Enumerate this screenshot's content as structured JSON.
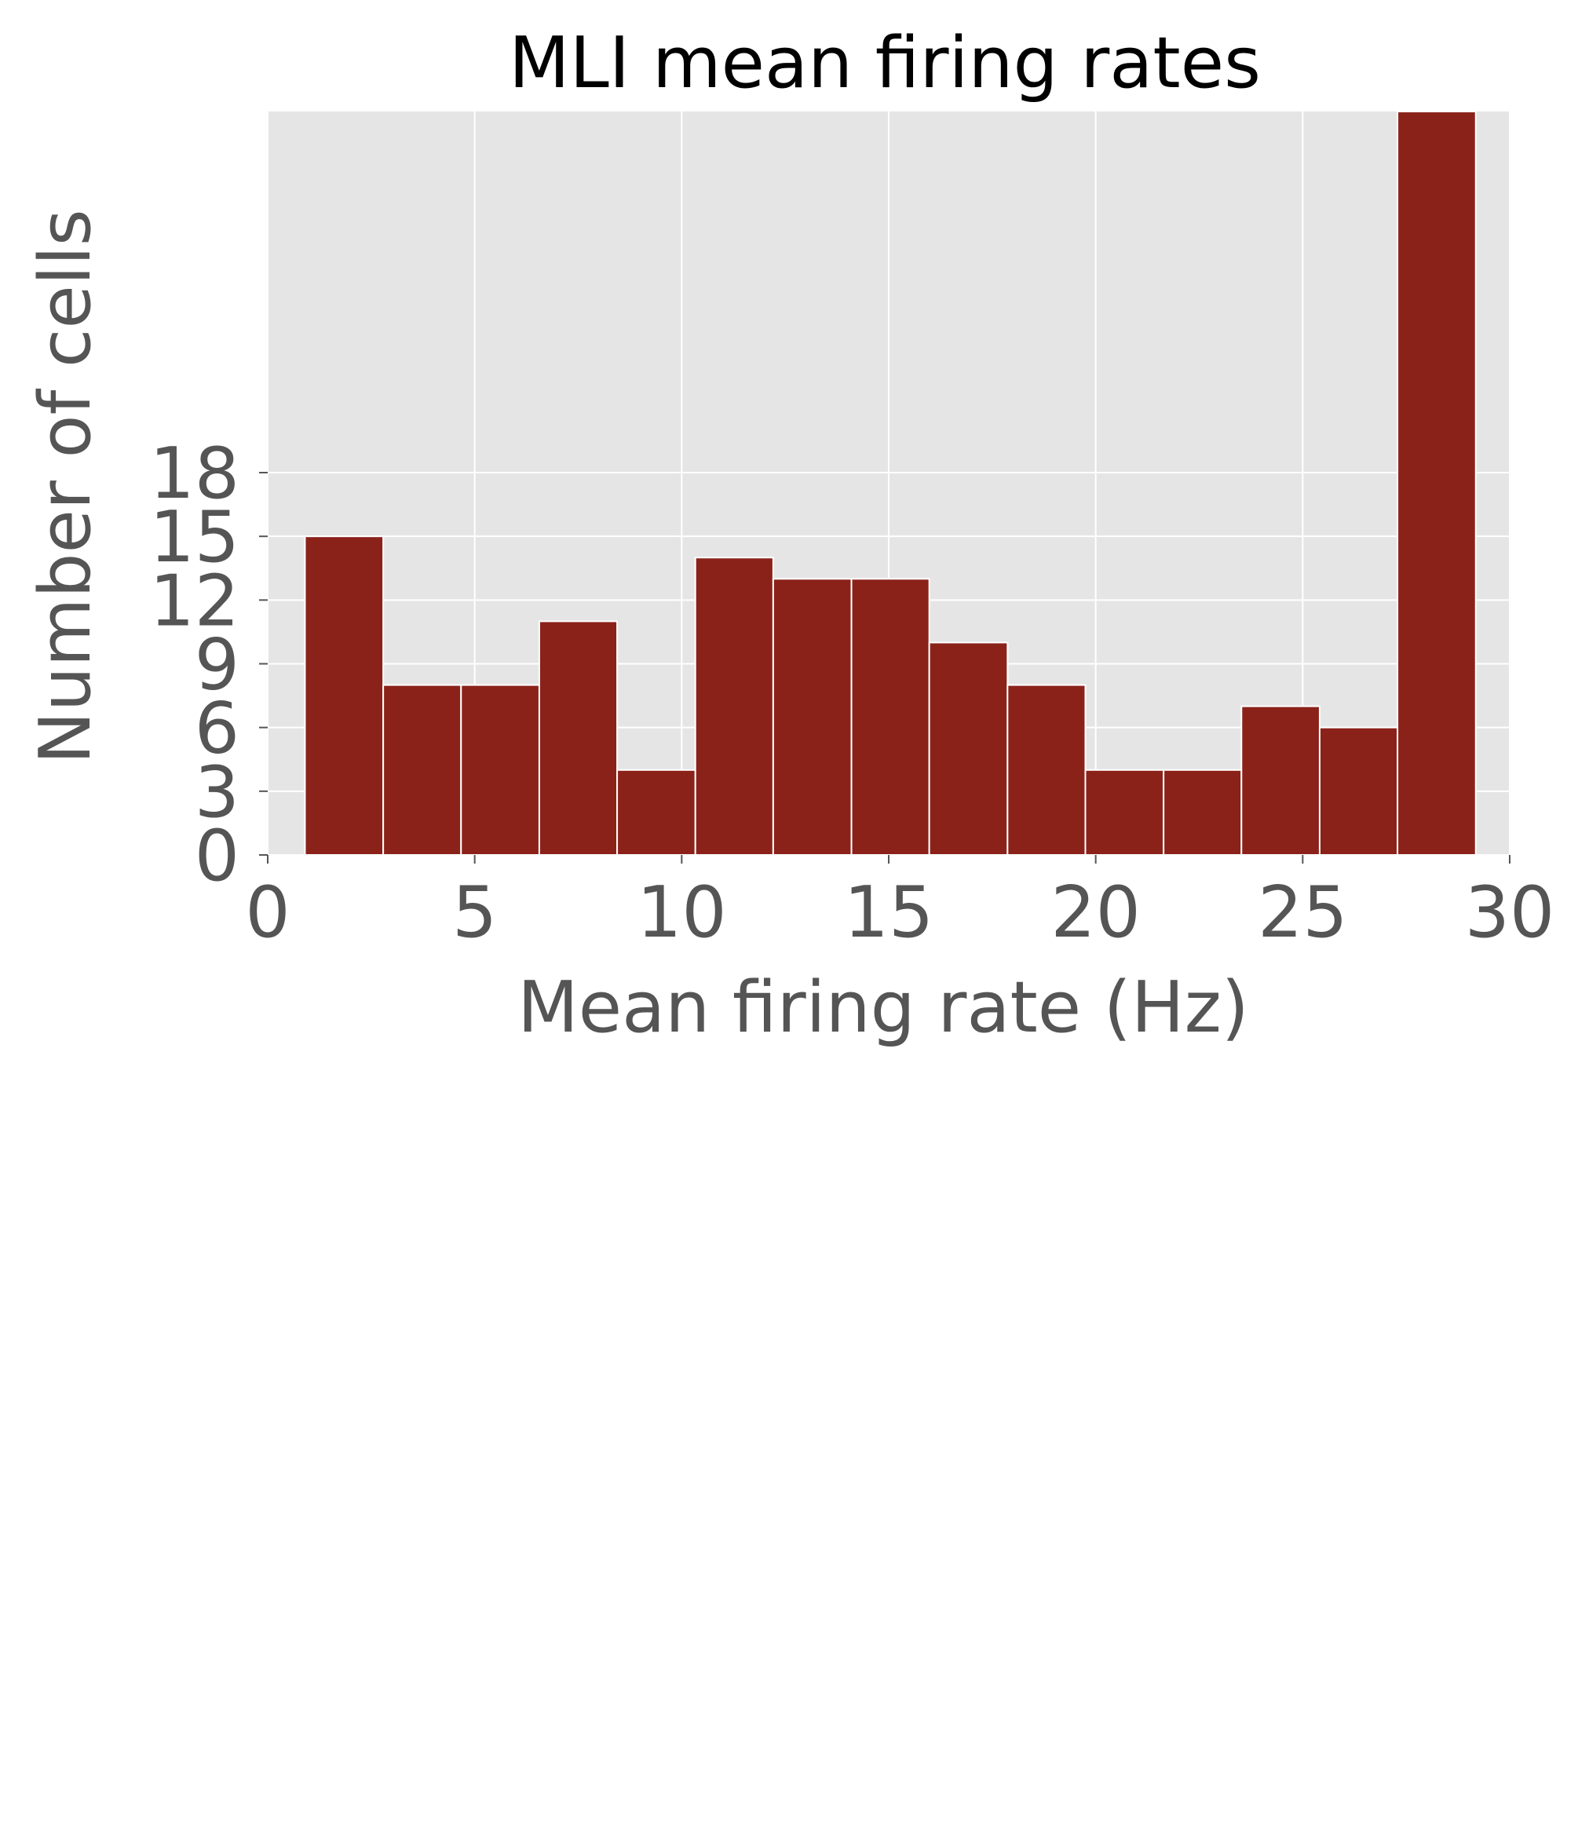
{
  "chart_data": {
    "type": "bar",
    "title": "MLI mean firing rates",
    "xlabel": "Mean firing rate (Hz)",
    "ylabel": "Number of cells",
    "xlim": [
      0,
      30
    ],
    "ylim": [
      0,
      35
    ],
    "xticks": [
      "0",
      "5",
      "10",
      "15",
      "20",
      "25",
      "30"
    ],
    "yticks": [
      "0",
      "3",
      "6",
      "9",
      "12",
      "15",
      "18"
    ],
    "bin_edges": [
      0.9,
      2.79,
      4.67,
      6.56,
      8.44,
      10.33,
      12.21,
      14.1,
      15.98,
      17.87,
      19.75,
      21.64,
      23.52,
      25.41,
      27.29,
      29.18
    ],
    "values": [
      15,
      8,
      8,
      11,
      4,
      14,
      13,
      13,
      10,
      8,
      4,
      4,
      7,
      6,
      35
    ],
    "grid": true,
    "legend": "none",
    "colors": {
      "bar_fill": "#8B221A",
      "bar_edge": "#ffffff",
      "plot_background": "#E5E5E5",
      "grid": "#ffffff"
    }
  }
}
